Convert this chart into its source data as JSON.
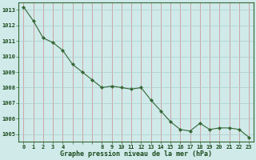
{
  "x": [
    0,
    1,
    2,
    3,
    4,
    5,
    6,
    7,
    8,
    9,
    10,
    11,
    12,
    13,
    14,
    15,
    16,
    17,
    18,
    19,
    20,
    21,
    22,
    23
  ],
  "y": [
    1013.2,
    1012.3,
    1011.2,
    1010.9,
    1010.4,
    1009.5,
    1009.0,
    1008.5,
    1008.0,
    1008.1,
    1008.0,
    1007.9,
    1008.0,
    1007.2,
    1006.5,
    1005.8,
    1005.3,
    1005.2,
    1005.7,
    1005.3,
    1005.4,
    1005.4,
    1005.3,
    1004.8
  ],
  "yticks": [
    1005,
    1006,
    1007,
    1008,
    1009,
    1010,
    1011,
    1012,
    1013
  ],
  "ylim": [
    1004.5,
    1013.5
  ],
  "xlim": [
    -0.5,
    23.5
  ],
  "xlabel": "Graphe pression niveau de la mer (hPa)",
  "line_color": "#336633",
  "marker_color": "#336633",
  "bg_color": "#d0eaea",
  "vgrid_color": "#cc8888",
  "hgrid_color": "#aacccc",
  "border_color": "#336633",
  "xlabel_color": "#1a4a1a",
  "tick_label_color": "#1a4a1a",
  "shown_xticks": [
    0,
    1,
    2,
    3,
    4,
    8,
    9,
    10,
    11,
    12,
    13,
    14,
    15,
    16,
    17,
    18,
    19,
    20,
    21,
    22,
    23
  ]
}
